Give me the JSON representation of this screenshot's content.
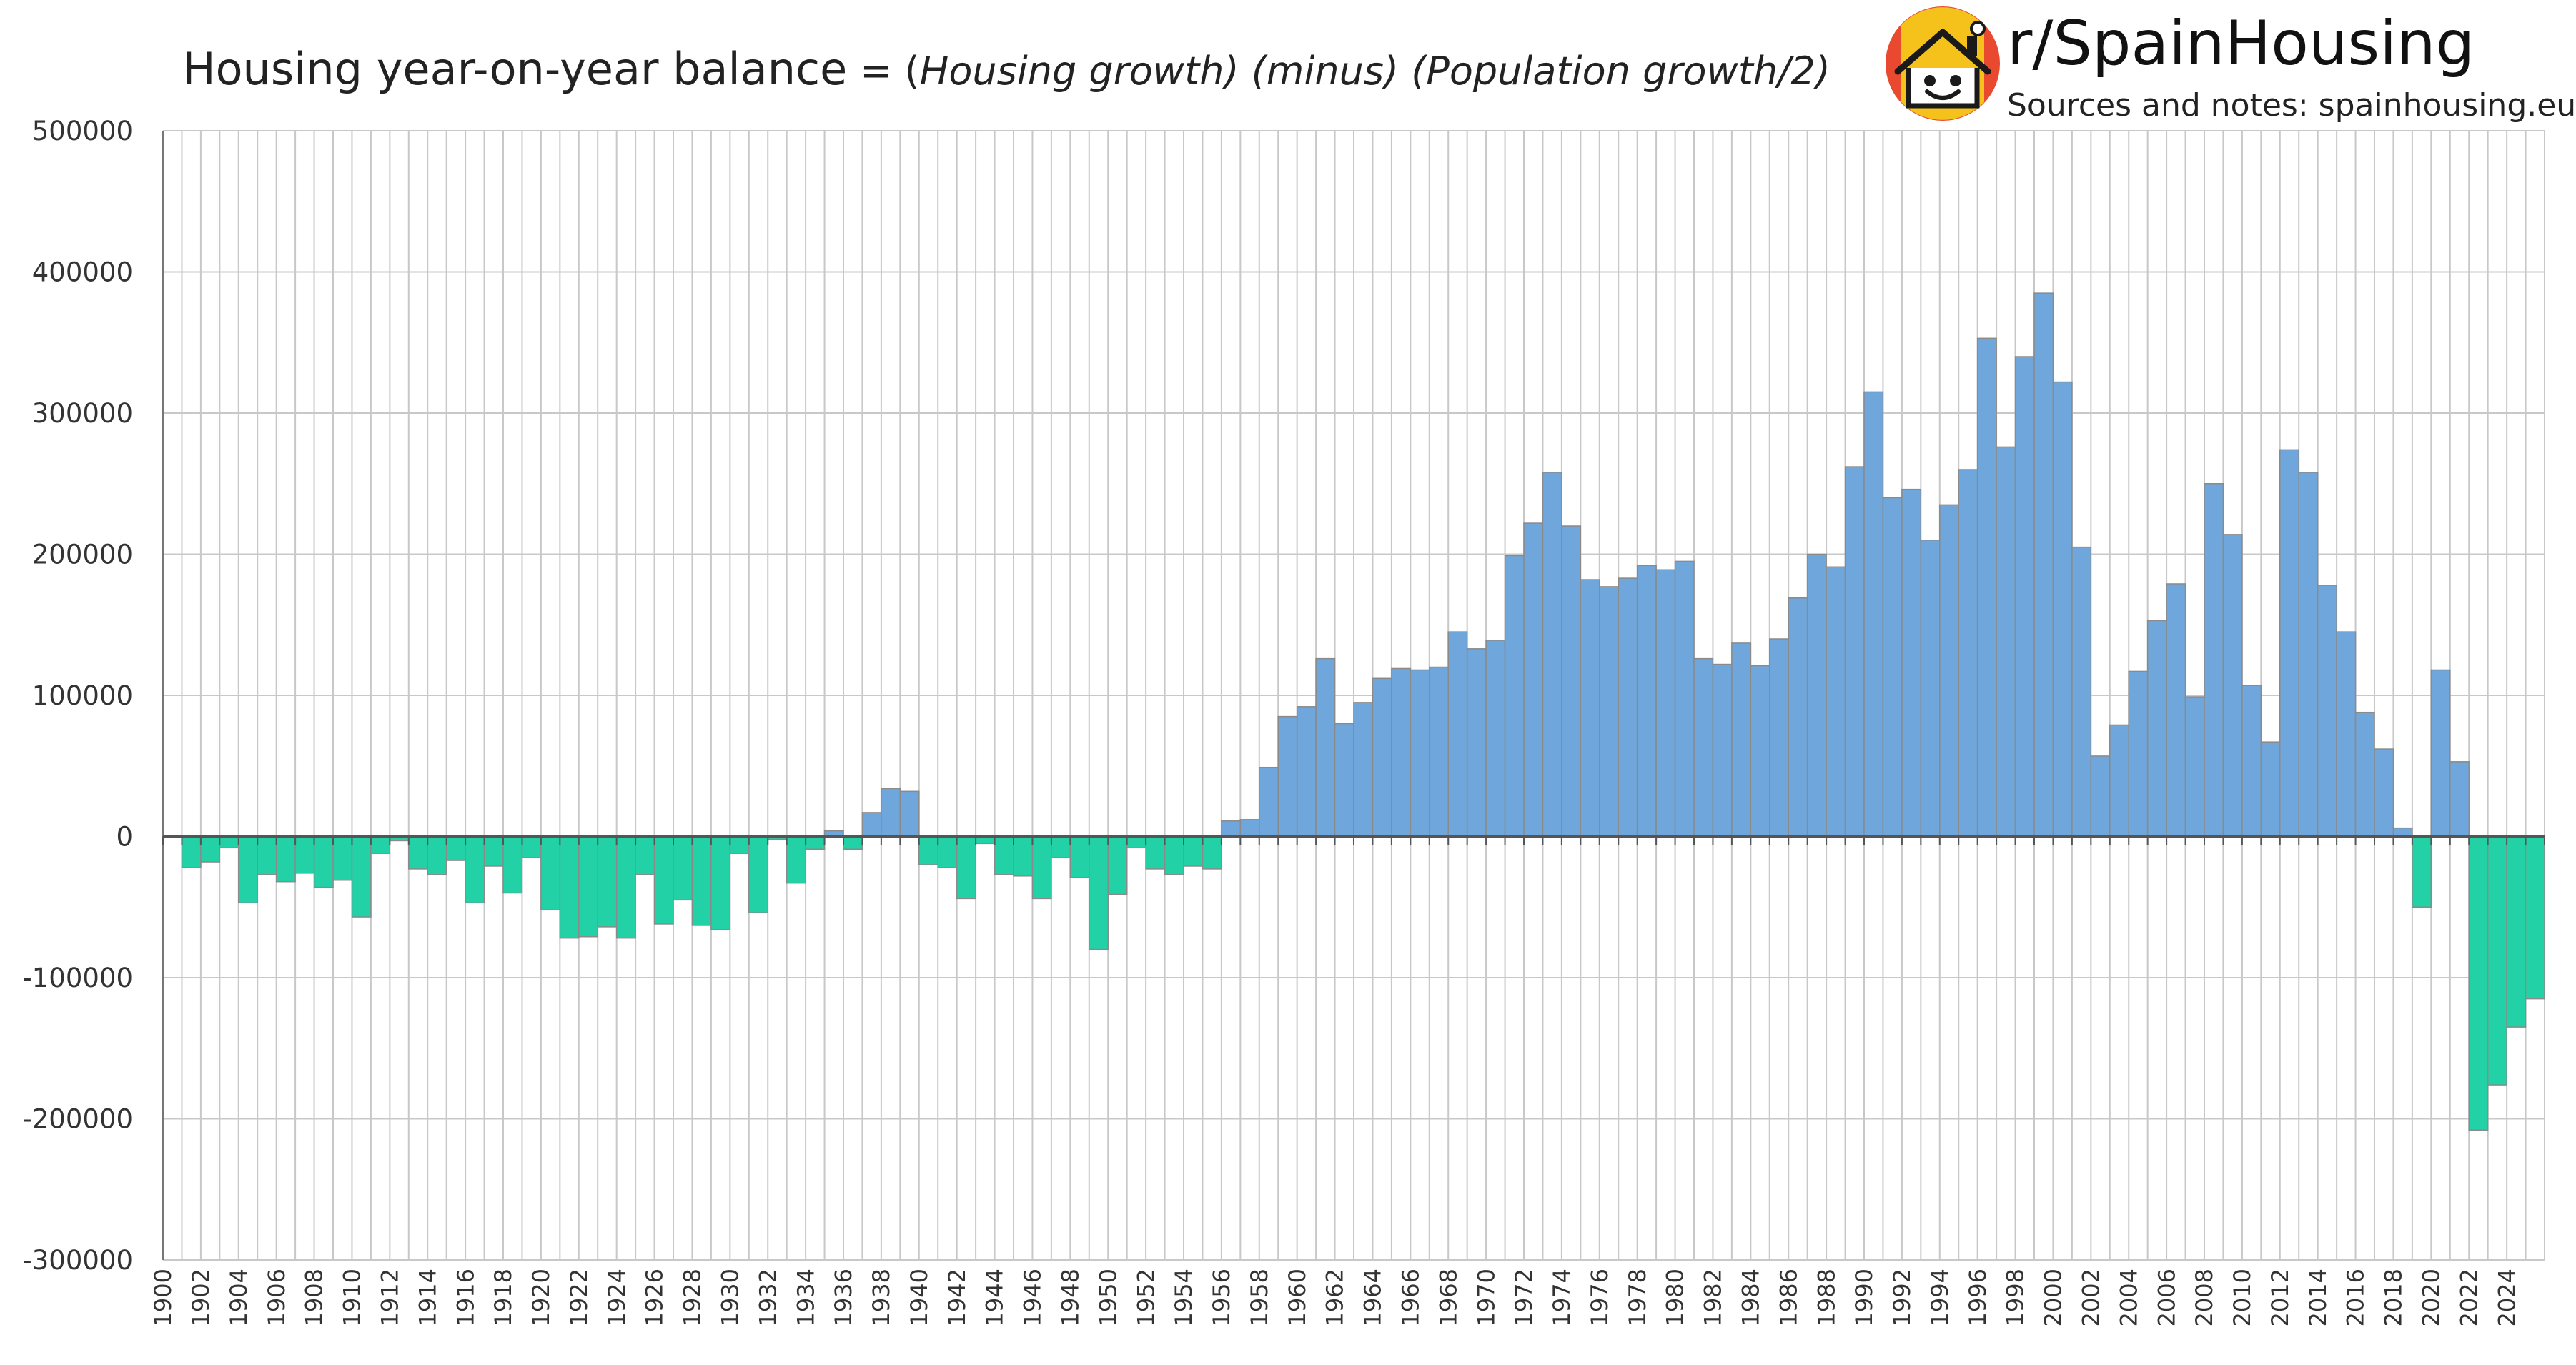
{
  "header": {
    "title": "Housing year-on-year balance",
    "formula_prefix": "= (",
    "formula_italic": "Housing growth) (minus) (Population growth/2)"
  },
  "brand": {
    "name": "r/SpainHousing",
    "subtitle": "Sources and notes: spainhousing.eu",
    "logo_icon": "house-face-icon"
  },
  "colors": {
    "positive": "#6fa6db",
    "negative": "#22d1a6",
    "bar_stroke": "#8a8a8a",
    "grid": "#c8c8c8",
    "logo_bg": "#e8492f",
    "logo_stripe": "#f5c21b"
  },
  "chart_data": {
    "type": "bar",
    "title": "Housing year-on-year balance",
    "xlabel": "",
    "ylabel": "",
    "ylim": [
      -300000,
      500000
    ],
    "yticks": [
      500000,
      400000,
      300000,
      200000,
      100000,
      0,
      -100000,
      -200000,
      -300000
    ],
    "ytick_labels": [
      "500000",
      "400000",
      "300000",
      "200000",
      "100000",
      "0",
      "-100000",
      "-200000",
      "-300000"
    ],
    "grid": true,
    "x_start": 1900,
    "x_end": 2025,
    "x_label_every": 2,
    "categories": [
      1900,
      1901,
      1902,
      1903,
      1904,
      1905,
      1906,
      1907,
      1908,
      1909,
      1910,
      1911,
      1912,
      1913,
      1914,
      1915,
      1916,
      1917,
      1918,
      1919,
      1920,
      1921,
      1922,
      1923,
      1924,
      1925,
      1926,
      1927,
      1928,
      1929,
      1930,
      1931,
      1932,
      1933,
      1934,
      1935,
      1936,
      1937,
      1938,
      1939,
      1940,
      1941,
      1942,
      1943,
      1944,
      1945,
      1946,
      1947,
      1948,
      1949,
      1950,
      1951,
      1952,
      1953,
      1954,
      1955,
      1956,
      1957,
      1958,
      1959,
      1960,
      1961,
      1962,
      1963,
      1964,
      1965,
      1966,
      1967,
      1968,
      1969,
      1970,
      1971,
      1972,
      1973,
      1974,
      1975,
      1976,
      1977,
      1978,
      1979,
      1980,
      1981,
      1982,
      1983,
      1984,
      1985,
      1986,
      1987,
      1988,
      1989,
      1990,
      1991,
      1992,
      1993,
      1994,
      1995,
      1996,
      1997,
      1998,
      1999,
      2000,
      2001,
      2002,
      2003,
      2004,
      2005,
      2006,
      2007,
      2008,
      2009,
      2010,
      2011,
      2012,
      2013,
      2014,
      2015,
      2016,
      2017,
      2018,
      2019,
      2020,
      2021,
      2022,
      2023,
      2024,
      2025
    ],
    "values": [
      null,
      -22000,
      -18000,
      -8000,
      -47000,
      -27000,
      -32000,
      -26000,
      -36000,
      -31000,
      -57000,
      -12000,
      -3000,
      -23000,
      -27000,
      -17000,
      -47000,
      -21000,
      -40000,
      -15000,
      -52000,
      -72000,
      -71000,
      -64000,
      -72000,
      -27000,
      -62000,
      -45000,
      -63000,
      -66000,
      -12000,
      -54000,
      -2000,
      -33000,
      -9000,
      4000,
      -9000,
      17000,
      34000,
      32000,
      -20000,
      -22000,
      -44000,
      -5000,
      -27000,
      -28000,
      -44000,
      -15000,
      -29000,
      -80000,
      -41000,
      -8000,
      -23000,
      -27000,
      -21000,
      -23000,
      11000,
      12000,
      49000,
      85000,
      92000,
      126000,
      80000,
      95000,
      112000,
      119000,
      118000,
      120000,
      145000,
      133000,
      139000,
      199000,
      222000,
      258000,
      220000,
      182000,
      177000,
      183000,
      192000,
      189000,
      195000,
      126000,
      122000,
      137000,
      121000,
      140000,
      169000,
      200000,
      191000,
      262000,
      315000,
      240000,
      246000,
      210000,
      235000,
      260000,
      353000,
      276000,
      340000,
      385000,
      322000,
      205000,
      57000,
      79000,
      117000,
      153000,
      179000,
      99000,
      250000,
      214000,
      107000,
      67000,
      274000,
      258000,
      178000,
      145000,
      88000,
      62000,
      6000,
      -50000,
      118000,
      53000,
      -208000,
      -176000,
      -135000,
      -115000
    ]
  }
}
